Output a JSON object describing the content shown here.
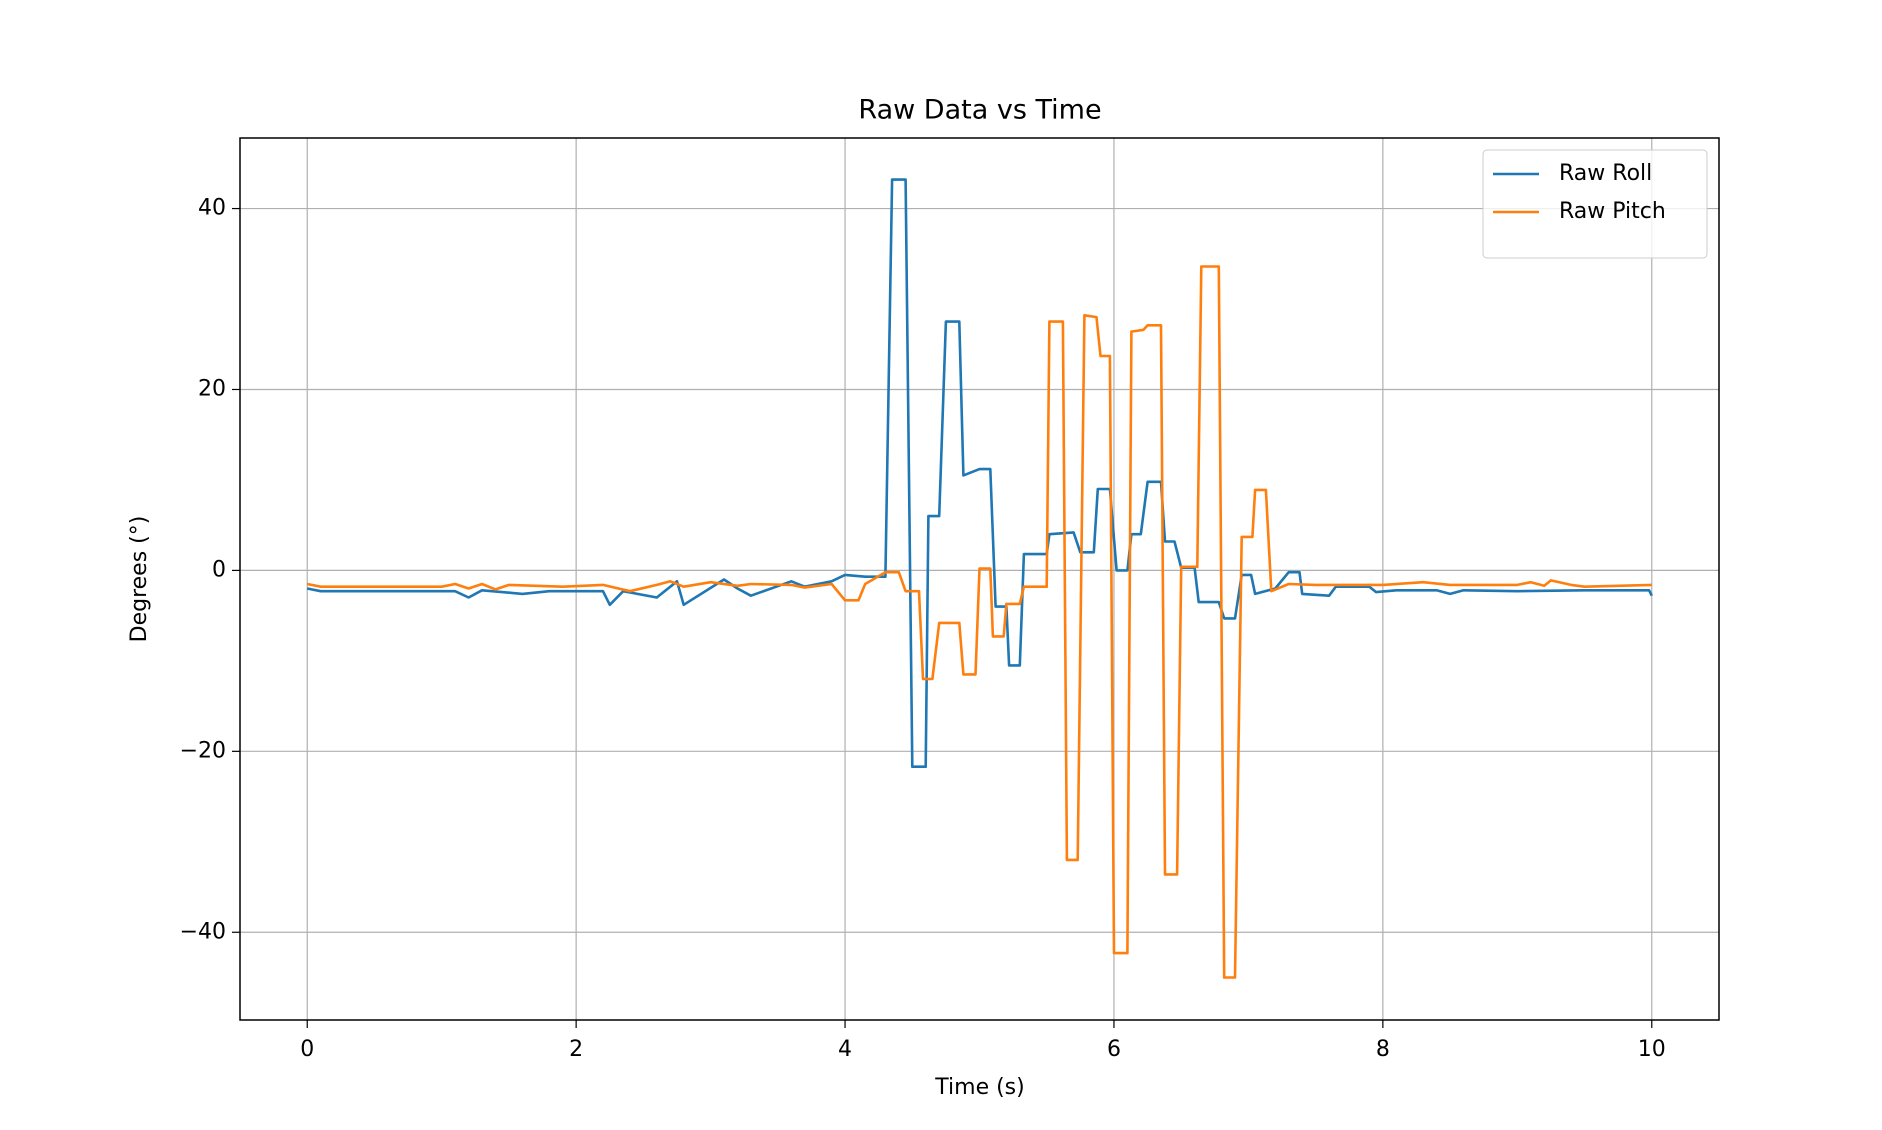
{
  "chart_data": {
    "type": "line",
    "title": "Raw Data vs Time",
    "xlabel": "Time (s)",
    "ylabel": "Degrees (°)",
    "xlim": [
      -0.5,
      10.5
    ],
    "ylim": [
      -49.7,
      47.8
    ],
    "xticks": [
      0,
      2,
      4,
      6,
      8,
      10
    ],
    "yticks": [
      {
        "value": -40,
        "label": "−40"
      },
      {
        "value": -20,
        "label": "−20"
      },
      0,
      20,
      40
    ],
    "grid": true,
    "legend": "upper right",
    "series": [
      {
        "name": "Raw Roll",
        "color": "#1f77b4",
        "x": [
          0,
          0.1,
          1.1,
          1.2,
          1.3,
          1.6,
          1.8,
          2.2,
          2.25,
          2.35,
          2.6,
          2.75,
          2.8,
          3.1,
          3.2,
          3.3,
          3.6,
          3.7,
          3.9,
          4.0,
          4.15,
          4.3,
          4.35,
          4.45,
          4.5,
          4.6,
          4.62,
          4.7,
          4.75,
          4.85,
          4.88,
          5.0,
          5.08,
          5.12,
          5.2,
          5.22,
          5.3,
          5.33,
          5.5,
          5.52,
          5.7,
          5.75,
          5.85,
          5.88,
          5.97,
          6.02,
          6.1,
          6.13,
          6.2,
          6.25,
          6.35,
          6.38,
          6.45,
          6.5,
          6.6,
          6.63,
          6.78,
          6.82,
          6.9,
          6.95,
          7.02,
          7.05,
          7.2,
          7.3,
          7.38,
          7.4,
          7.6,
          7.65,
          7.9,
          7.95,
          8.1,
          8.4,
          8.5,
          8.6,
          9.0,
          9.5,
          9.98,
          10
        ],
        "values": [
          -2,
          -2.3,
          -2.3,
          -3,
          -2.2,
          -2.6,
          -2.3,
          -2.3,
          -3.8,
          -2.3,
          -3,
          -1.2,
          -3.8,
          -1,
          -2,
          -2.8,
          -1.2,
          -1.8,
          -1.2,
          -0.5,
          -0.7,
          -0.7,
          43.2,
          43.2,
          -21.7,
          -21.7,
          6,
          6,
          27.5,
          27.5,
          10.5,
          11.2,
          11.2,
          -4,
          -4,
          -10.5,
          -10.5,
          1.8,
          1.8,
          4,
          4.2,
          2,
          2,
          9,
          9,
          0,
          0,
          4,
          4,
          9.8,
          9.8,
          3.2,
          3.2,
          0.3,
          0.3,
          -3.5,
          -3.5,
          -5.3,
          -5.3,
          -0.5,
          -0.5,
          -2.6,
          -2,
          -0.2,
          -0.2,
          -2.6,
          -2.8,
          -1.8,
          -1.8,
          -2.4,
          -2.2,
          -2.2,
          -2.6,
          -2.2,
          -2.3,
          -2.2,
          -2.2,
          -2.8
        ]
      },
      {
        "name": "Raw Pitch",
        "color": "#ff7f0e",
        "x": [
          0,
          0.1,
          1.0,
          1.1,
          1.2,
          1.3,
          1.4,
          1.5,
          1.9,
          2.2,
          2.4,
          2.6,
          2.7,
          2.8,
          3.0,
          3.2,
          3.3,
          3.6,
          3.7,
          3.9,
          4.0,
          4.1,
          4.15,
          4.3,
          4.4,
          4.45,
          4.55,
          4.58,
          4.65,
          4.7,
          4.85,
          4.88,
          4.97,
          5.0,
          5.08,
          5.1,
          5.18,
          5.2,
          5.3,
          5.33,
          5.5,
          5.52,
          5.62,
          5.65,
          5.73,
          5.78,
          5.87,
          5.9,
          5.97,
          6.0,
          6.1,
          6.13,
          6.22,
          6.25,
          6.35,
          6.38,
          6.47,
          6.5,
          6.62,
          6.65,
          6.78,
          6.82,
          6.9,
          6.95,
          7.03,
          7.05,
          7.13,
          7.17,
          7.3,
          7.5,
          8.0,
          8.3,
          8.5,
          9.0,
          9.1,
          9.2,
          9.25,
          9.4,
          9.5,
          10
        ],
        "values": [
          -1.5,
          -1.8,
          -1.8,
          -1.5,
          -2,
          -1.5,
          -2.1,
          -1.6,
          -1.8,
          -1.6,
          -2.3,
          -1.6,
          -1.2,
          -1.8,
          -1.3,
          -1.7,
          -1.5,
          -1.6,
          -1.9,
          -1.5,
          -3.3,
          -3.3,
          -1.5,
          -0.2,
          -0.2,
          -2.3,
          -2.3,
          -12,
          -12,
          -5.8,
          -5.8,
          -11.5,
          -11.5,
          0.2,
          0.2,
          -7.3,
          -7.3,
          -3.7,
          -3.7,
          -1.8,
          -1.8,
          27.5,
          27.5,
          -32,
          -32,
          28.2,
          28,
          23.7,
          23.7,
          -42.3,
          -42.3,
          26.4,
          26.6,
          27.1,
          27.1,
          -33.6,
          -33.6,
          0.4,
          0.4,
          33.6,
          33.6,
          -45,
          -45,
          3.7,
          3.7,
          8.9,
          8.9,
          -2.3,
          -1.5,
          -1.6,
          -1.6,
          -1.3,
          -1.6,
          -1.6,
          -1.3,
          -1.7,
          -1.1,
          -1.6,
          -1.8,
          -1.6
        ]
      }
    ]
  }
}
